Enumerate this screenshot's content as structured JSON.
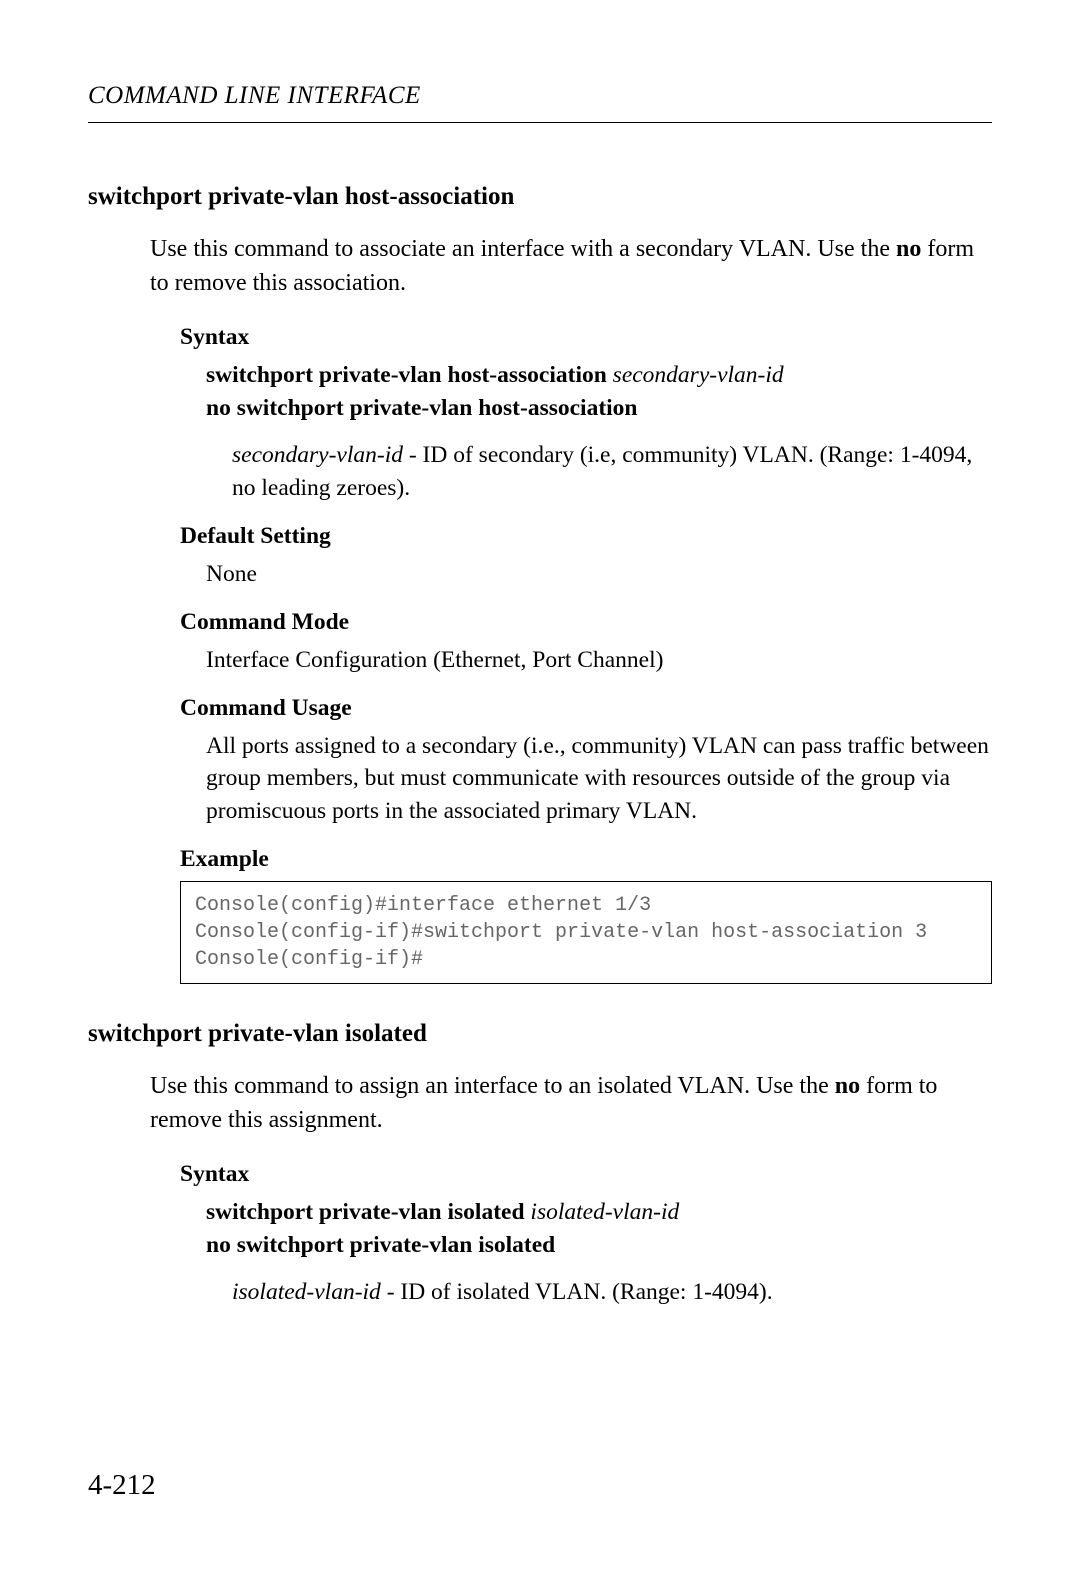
{
  "page_header": "COMMAND LINE INTERFACE",
  "section1": {
    "title": "switchport private-vlan host-association",
    "intro_part1": "Use this command to associate an interface with a secondary VLAN. Use the ",
    "intro_bold": "no",
    "intro_part2": " form to remove this association.",
    "syntax_heading": "Syntax",
    "syntax_cmd_bold": "switchport private-vlan host-association ",
    "syntax_cmd_italic": "secondary-vlan-id",
    "syntax_no_cmd": "no switchport private-vlan host-association",
    "param_italic": "secondary-vlan-id",
    "param_desc": " - ID of secondary (i.e, community) VLAN. (Range: 1-4094, no leading zeroes).",
    "default_heading": "Default Setting",
    "default_value": "None",
    "mode_heading": "Command Mode",
    "mode_value": "Interface Configuration (Ethernet, Port Channel)",
    "usage_heading": "Command Usage",
    "usage_text": "All ports assigned to a secondary (i.e., community) VLAN can pass traffic between group members, but must communicate with resources outside of the group via promiscuous ports in the associated primary VLAN.",
    "example_heading": "Example",
    "example_code": "Console(config)#interface ethernet 1/3\nConsole(config-if)#switchport private-vlan host-association 3\nConsole(config-if)#"
  },
  "section2": {
    "title": "switchport private-vlan isolated",
    "intro_part1": "Use this command to assign an interface to an isolated VLAN. Use the ",
    "intro_bold": "no",
    "intro_part2": " form to remove this assignment.",
    "syntax_heading": "Syntax",
    "syntax_cmd_bold": "switchport private-vlan isolated ",
    "syntax_cmd_italic": "isolated-vlan-id",
    "syntax_no_cmd": "no switchport private-vlan isolated",
    "param_italic": "isolated-vlan-id",
    "param_desc": " - ID of isolated VLAN. (Range: 1-4094)."
  },
  "page_number": "4-212"
}
